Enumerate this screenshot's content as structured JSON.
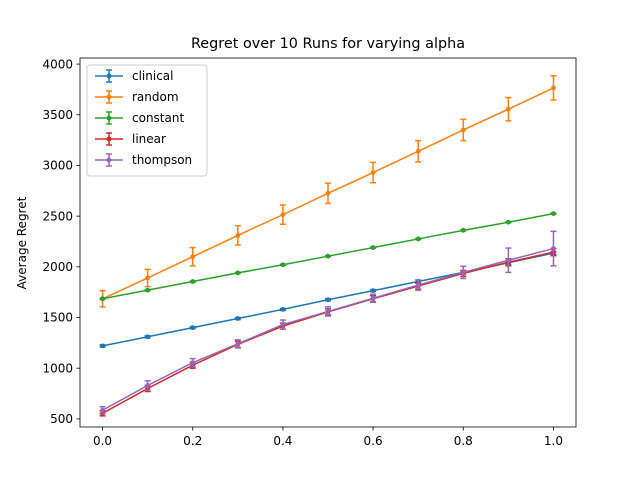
{
  "chart_data": {
    "type": "line",
    "title": "Regret over 10 Runs for varying alpha",
    "xlabel": "",
    "ylabel": "Average Regret",
    "xlim": [
      -0.05,
      1.05
    ],
    "ylim": [
      420,
      4060
    ],
    "xticks": [
      0.0,
      0.2,
      0.4,
      0.6,
      0.8,
      1.0
    ],
    "xtick_labels": [
      "0.0",
      "0.2",
      "0.4",
      "0.6",
      "0.8",
      "1.0"
    ],
    "yticks": [
      500,
      1000,
      1500,
      2000,
      2500,
      3000,
      3500,
      4000
    ],
    "ytick_labels": [
      "500",
      "1000",
      "1500",
      "2000",
      "2500",
      "3000",
      "3500",
      "4000"
    ],
    "grid": false,
    "legend_position": "top-left",
    "x": [
      0.0,
      0.1,
      0.2,
      0.3,
      0.4,
      0.5,
      0.6,
      0.7,
      0.8,
      0.9,
      1.0
    ],
    "series": [
      {
        "name": "clinical",
        "color": "#1f77b4",
        "values": [
          1220,
          1310,
          1400,
          1490,
          1580,
          1675,
          1765,
          1855,
          1945,
          2040,
          2135
        ],
        "errors": [
          10,
          10,
          10,
          10,
          10,
          10,
          10,
          15,
          15,
          15,
          15
        ]
      },
      {
        "name": "random",
        "color": "#ff7f0e",
        "values": [
          1685,
          1890,
          2100,
          2310,
          2515,
          2725,
          2930,
          3140,
          3350,
          3555,
          3765
        ],
        "errors": [
          80,
          85,
          90,
          95,
          95,
          100,
          100,
          105,
          105,
          115,
          120
        ]
      },
      {
        "name": "constant",
        "color": "#2ca02c",
        "values": [
          1685,
          1770,
          1855,
          1940,
          2020,
          2105,
          2190,
          2275,
          2360,
          2440,
          2525
        ],
        "errors": [
          5,
          5,
          5,
          5,
          5,
          5,
          5,
          5,
          5,
          5,
          5
        ]
      },
      {
        "name": "linear",
        "color": "#d62728",
        "values": [
          555,
          800,
          1030,
          1235,
          1415,
          1555,
          1685,
          1810,
          1935,
          2045,
          2145
        ],
        "errors": [
          25,
          30,
          30,
          30,
          30,
          30,
          30,
          30,
          30,
          35,
          35
        ]
      },
      {
        "name": "thompson",
        "color": "#9467bd",
        "values": [
          585,
          830,
          1055,
          1240,
          1430,
          1560,
          1690,
          1820,
          1945,
          2065,
          2180
        ],
        "errors": [
          35,
          45,
          40,
          40,
          45,
          45,
          40,
          50,
          60,
          120,
          170
        ]
      }
    ]
  }
}
